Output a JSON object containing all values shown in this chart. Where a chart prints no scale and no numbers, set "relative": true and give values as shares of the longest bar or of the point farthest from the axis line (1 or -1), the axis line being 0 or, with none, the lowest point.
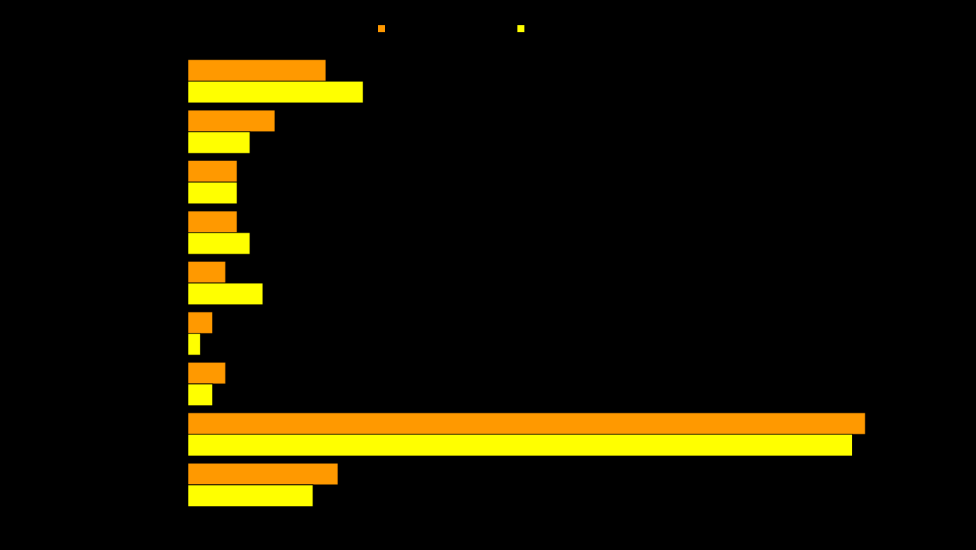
{
  "chart_data": {
    "type": "bar",
    "orientation": "horizontal",
    "relative": true,
    "categories": [
      null,
      null,
      null,
      null,
      null,
      null,
      null,
      null,
      null
    ],
    "series": [
      {
        "color": "#ff9900",
        "values": [
          0.204,
          0.129,
          0.073,
          0.073,
          0.056,
          0.037,
          0.056,
          1,
          0.222
        ]
      },
      {
        "color": "#ffff00",
        "values": [
          0.259,
          0.092,
          0.073,
          0.092,
          0.111,
          0.019,
          0.037,
          0.981,
          0.185
        ]
      }
    ]
  }
}
